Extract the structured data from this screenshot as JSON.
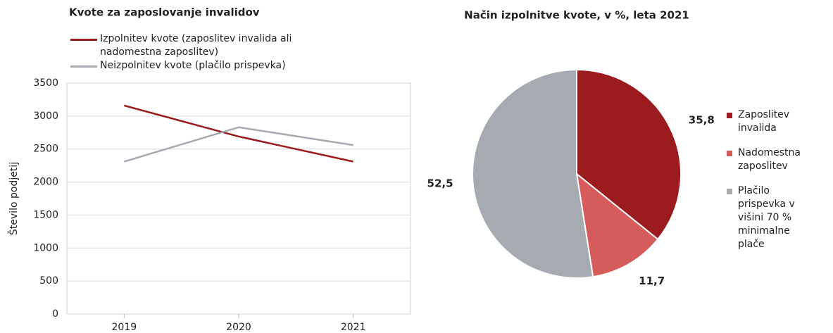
{
  "chart_data": [
    {
      "type": "line",
      "title": "Kvote za zaposlovanje invalidov",
      "y_label": "Število podjetij",
      "categories": [
        "2019",
        "2020",
        "2021"
      ],
      "series": [
        {
          "name": "Izpolnitev kvote (zaposlitev invalida ali nadomestna zaposlitev)",
          "color": "#9b1b1f",
          "values": [
            3160,
            2690,
            2310
          ]
        },
        {
          "name": "Neizpolnitev kvote (plačilo prispevka)",
          "color": "#a6abb1",
          "values": [
            2310,
            2830,
            2560
          ]
        }
      ],
      "ylim": [
        0,
        3500
      ],
      "yticks": [
        0,
        500,
        1000,
        1500,
        2000,
        2500,
        3000,
        3500
      ],
      "grid": true
    },
    {
      "type": "pie",
      "title": "Način izpolnitve kvote, v %, leta 2021",
      "categories": [
        "Zaposlitev invalida",
        "Nadomestna zaposlitev",
        "Plačilo prispevka v višini 70 % minimalne plače"
      ],
      "values": [
        35.8,
        11.7,
        52.5
      ],
      "value_labels": [
        "35,8",
        "11,7",
        "52,5"
      ],
      "colors": [
        "#9b1b1f",
        "#d65c5c",
        "#a6abb1"
      ]
    }
  ]
}
